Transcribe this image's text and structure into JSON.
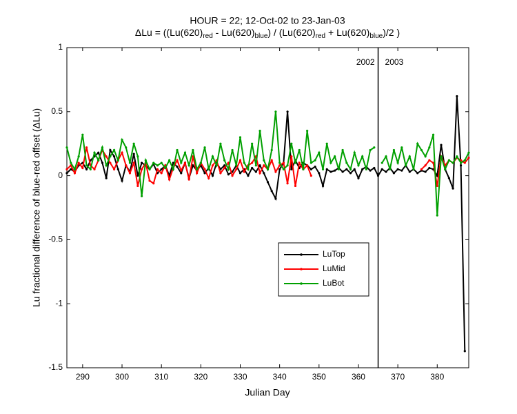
{
  "chart_data": {
    "type": "line",
    "title": "HOUR = 22; 12-Oct-02 to 23-Jan-03",
    "subtitle": [
      {
        "text": "ΔLu = ((Lu(620)",
        "sub": false
      },
      {
        "text": "red",
        "sub": true
      },
      {
        "text": " - Lu(620)",
        "sub": false
      },
      {
        "text": "blue",
        "sub": true
      },
      {
        "text": ") / (Lu(620)",
        "sub": false
      },
      {
        "text": "red",
        "sub": true
      },
      {
        "text": " + Lu(620)",
        "sub": false
      },
      {
        "text": "blue",
        "sub": true
      },
      {
        "text": ")/2  )",
        "sub": false
      }
    ],
    "xlabel": "Julian Day",
    "ylabel": "Lu fractional difference of blue-red offset (ΔLu)",
    "xlim": [
      286,
      388
    ],
    "ylim": [
      -1.5,
      1
    ],
    "xticks": [
      290,
      300,
      310,
      320,
      330,
      340,
      350,
      360,
      370,
      380
    ],
    "yticks": [
      -1.5,
      -1,
      -0.5,
      0,
      0.5,
      1
    ],
    "vline": 365,
    "annotations": [
      {
        "text": "2002",
        "x": 365,
        "side": "left"
      },
      {
        "text": "2003",
        "x": 365,
        "side": "right"
      }
    ],
    "legend": "lower-center",
    "series": [
      {
        "name": "LuTop",
        "color": "#000000",
        "x": [
          286,
          287,
          288,
          289,
          290,
          291,
          292,
          293,
          294,
          295,
          296,
          297,
          298,
          299,
          300,
          301,
          302,
          303,
          304,
          305,
          306,
          307,
          308,
          309,
          310,
          311,
          312,
          313,
          314,
          315,
          316,
          317,
          318,
          319,
          320,
          321,
          322,
          323,
          324,
          325,
          326,
          327,
          328,
          329,
          330,
          331,
          332,
          333,
          334,
          335,
          336,
          337,
          338,
          339,
          340,
          341,
          342,
          343,
          344,
          345,
          346,
          347,
          348,
          349,
          350,
          351,
          352,
          353,
          354,
          355,
          356,
          357,
          358,
          359,
          360,
          361,
          362,
          363,
          364,
          365,
          366,
          367,
          368,
          369,
          370,
          371,
          372,
          373,
          374,
          375,
          376,
          377,
          378,
          379,
          380,
          381,
          382,
          383,
          384,
          385,
          386,
          387
        ],
        "values": [
          0.02,
          0.05,
          0.03,
          0.08,
          0.1,
          0.05,
          0.12,
          0.15,
          0.18,
          0.1,
          -0.02,
          0.2,
          0.15,
          0.05,
          -0.04,
          0.08,
          0.03,
          0.17,
          0.0,
          0.1,
          0.08,
          0.05,
          0.09,
          0.02,
          0.05,
          0.08,
          0.0,
          0.1,
          0.07,
          0.02,
          0.1,
          -0.02,
          0.08,
          0.04,
          0.08,
          0.02,
          0.06,
          0.0,
          0.1,
          0.05,
          0.08,
          0.01,
          0.03,
          0.08,
          0.02,
          0.05,
          0.0,
          0.06,
          0.03,
          0.08,
          0.02,
          -0.05,
          -0.12,
          -0.18,
          0.05,
          0.1,
          0.5,
          0.05,
          0.12,
          0.06,
          0.1,
          0.08,
          0.05,
          0.07,
          0.02,
          -0.08,
          0.05,
          0.03,
          0.04,
          0.06,
          0.03,
          0.05,
          0.02,
          0.05,
          -0.02,
          0.05,
          0.07,
          0.04,
          0.06,
          0.0,
          0.05,
          0.03,
          0.06,
          0.02,
          0.05,
          0.04,
          0.08,
          0.03,
          0.05,
          0.02,
          0.04,
          0.03,
          0.06,
          0.05,
          0.0,
          0.24,
          0.05,
          -0.02,
          -0.1,
          0.62,
          0.08,
          -1.37
        ]
      },
      {
        "name": "LuMid",
        "color": "#ff0000",
        "x": [
          286,
          287,
          288,
          289,
          290,
          291,
          292,
          293,
          294,
          295,
          296,
          297,
          298,
          299,
          300,
          301,
          302,
          303,
          304,
          305,
          306,
          307,
          308,
          309,
          310,
          311,
          312,
          313,
          314,
          315,
          316,
          317,
          318,
          319,
          320,
          321,
          322,
          323,
          324,
          325,
          326,
          327,
          328,
          329,
          330,
          331,
          332,
          333,
          334,
          335,
          336,
          337,
          338,
          339,
          340,
          341,
          342,
          343,
          344,
          345,
          346,
          347,
          348,
          349,
          376,
          377,
          378,
          379,
          380,
          381,
          382,
          383,
          384,
          385,
          386,
          387,
          388
        ],
        "values": [
          0.05,
          0.08,
          0.02,
          0.1,
          0.06,
          0.22,
          0.08,
          0.05,
          0.12,
          0.2,
          0.15,
          0.1,
          0.05,
          0.12,
          0.18,
          0.08,
          0.02,
          0.1,
          -0.08,
          0.05,
          0.1,
          -0.04,
          -0.06,
          0.05,
          0.02,
          0.08,
          -0.03,
          0.06,
          0.12,
          0.04,
          0.1,
          -0.03,
          0.15,
          0.02,
          0.1,
          0.05,
          -0.02,
          0.08,
          0.12,
          0.02,
          0.06,
          0.1,
          0.0,
          0.05,
          0.12,
          0.03,
          0.08,
          0.1,
          0.15,
          0.02,
          0.08,
          0.05,
          0.12,
          0.03,
          0.08,
          0.1,
          -0.06,
          0.15,
          -0.08,
          0.1,
          0.05,
          0.08,
          0.0,
          null,
          0.05,
          0.08,
          0.12,
          0.1,
          -0.08,
          0.15,
          0.08,
          0.12,
          0.1,
          0.14,
          0.12,
          0.1,
          0.14
        ]
      },
      {
        "name": "LuBot",
        "color": "#00a000",
        "x": [
          286,
          287,
          288,
          289,
          290,
          291,
          292,
          293,
          294,
          295,
          296,
          297,
          298,
          299,
          300,
          301,
          302,
          303,
          304,
          305,
          306,
          307,
          308,
          309,
          310,
          311,
          312,
          313,
          314,
          315,
          316,
          317,
          318,
          319,
          320,
          321,
          322,
          323,
          324,
          325,
          326,
          327,
          328,
          329,
          330,
          331,
          332,
          333,
          334,
          335,
          336,
          337,
          338,
          339,
          340,
          341,
          342,
          343,
          344,
          345,
          346,
          347,
          348,
          349,
          350,
          351,
          352,
          353,
          354,
          355,
          356,
          357,
          358,
          359,
          360,
          361,
          362,
          363,
          364,
          365,
          366,
          367,
          368,
          369,
          370,
          371,
          372,
          373,
          374,
          375,
          376,
          377,
          378,
          379,
          380,
          381,
          382,
          383,
          384,
          385,
          386,
          387,
          388
        ],
        "values": [
          0.22,
          0.1,
          0.05,
          0.15,
          0.32,
          0.08,
          0.05,
          0.18,
          0.12,
          0.22,
          0.08,
          0.15,
          0.2,
          0.12,
          0.28,
          0.22,
          0.1,
          0.25,
          0.15,
          -0.16,
          0.12,
          0.05,
          0.1,
          0.08,
          0.1,
          0.06,
          0.12,
          0.05,
          0.2,
          0.1,
          0.18,
          0.08,
          0.2,
          0.05,
          0.1,
          0.22,
          0.05,
          0.15,
          0.08,
          0.25,
          0.12,
          0.05,
          0.2,
          0.08,
          0.3,
          0.1,
          0.05,
          0.25,
          0.08,
          0.35,
          0.12,
          0.05,
          0.2,
          0.5,
          0.1,
          0.05,
          0.08,
          0.25,
          0.1,
          0.2,
          0.05,
          0.35,
          0.1,
          0.12,
          0.18,
          0.05,
          0.25,
          0.1,
          0.15,
          0.05,
          0.2,
          0.1,
          0.05,
          0.18,
          0.08,
          0.15,
          0.05,
          0.2,
          0.22,
          null,
          0.1,
          0.15,
          0.05,
          0.2,
          0.1,
          0.22,
          0.08,
          0.15,
          0.05,
          0.25,
          0.2,
          0.15,
          0.22,
          0.32,
          -0.31,
          0.15,
          0.05,
          0.12,
          0.1,
          0.15,
          0.1,
          0.12,
          0.18
        ]
      }
    ]
  }
}
